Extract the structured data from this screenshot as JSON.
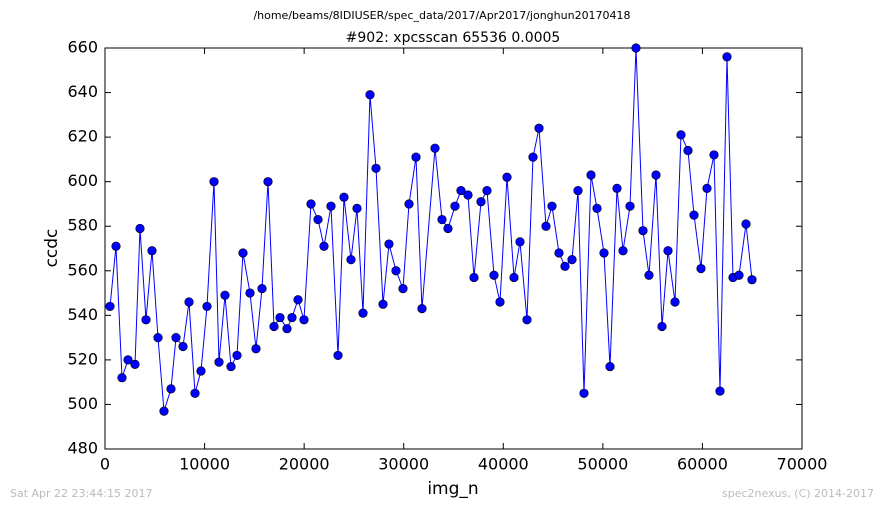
{
  "chart_data": {
    "type": "line",
    "suptitle": "/home/beams/8IDIUSER/spec_data/2017/Apr2017/jonghun20170418",
    "title": "#902: xpcsscan 65536 0.0005",
    "xlabel": "img_n",
    "ylabel": "ccdc",
    "footer_left": "Sat Apr 22 23:44:15 2017",
    "footer_right": "spec2nexus, (C) 2014-2017",
    "x": [
      502,
      1105,
      1707,
      2310,
      3013,
      3515,
      4118,
      4720,
      5323,
      5925,
      6628,
      7131,
      7834,
      8436,
      9039,
      9641,
      10244,
      10947,
      11449,
      12052,
      12654,
      13257,
      13859,
      14562,
      15165,
      15768,
      16370,
      16973,
      17575,
      18278,
      18780,
      19383,
      19986,
      20689,
      21392,
      21994,
      22697,
      23400,
      24003,
      24706,
      25308,
      25911,
      26614,
      27217,
      27920,
      28522,
      29225,
      29928,
      30531,
      31234,
      31836,
      33142,
      33845,
      34447,
      35150,
      35753,
      36456,
      37059,
      37762,
      38364,
      39067,
      39670,
      40373,
      41076,
      41678,
      42381,
      42984,
      43587,
      44290,
      44892,
      45595,
      46198,
      46901,
      47503,
      48106,
      48809,
      49412,
      50115,
      50717,
      51420,
      52023,
      52726,
      53328,
      54031,
      54634,
      55337,
      55940,
      56542,
      57245,
      57848,
      58551,
      59153,
      59856,
      60459,
      61162,
      61764,
      62467,
      63070,
      63673,
      64376,
      64978
    ],
    "series": [
      {
        "name": "ccdc",
        "color": "#0000ff",
        "values": [
          544,
          571,
          512,
          520,
          518,
          579,
          538,
          569,
          530,
          497,
          507,
          530,
          526,
          546,
          505,
          515,
          544,
          600,
          519,
          549,
          517,
          522,
          568,
          550,
          525,
          552,
          600,
          535,
          539,
          534,
          539,
          547,
          538,
          590,
          583,
          571,
          589,
          522,
          593,
          565,
          588,
          541,
          639,
          606,
          545,
          572,
          560,
          552,
          590,
          611,
          543,
          615,
          583,
          579,
          589,
          596,
          594,
          557,
          591,
          596,
          558,
          546,
          602,
          557,
          573,
          538,
          611,
          624,
          580,
          589,
          568,
          562,
          565,
          596,
          505,
          603,
          588,
          568,
          517,
          597,
          569,
          589,
          660,
          578,
          558,
          603,
          535,
          569,
          546,
          621,
          614,
          585,
          561,
          597,
          612,
          506,
          656,
          557,
          558,
          581,
          556
        ]
      }
    ],
    "xlim": [
      0,
      70000
    ],
    "xticks": [
      0,
      10000,
      20000,
      30000,
      40000,
      50000,
      60000,
      70000
    ],
    "ylim": [
      480,
      660
    ],
    "yticks": [
      480,
      500,
      520,
      540,
      560,
      580,
      600,
      620,
      640,
      660
    ]
  }
}
